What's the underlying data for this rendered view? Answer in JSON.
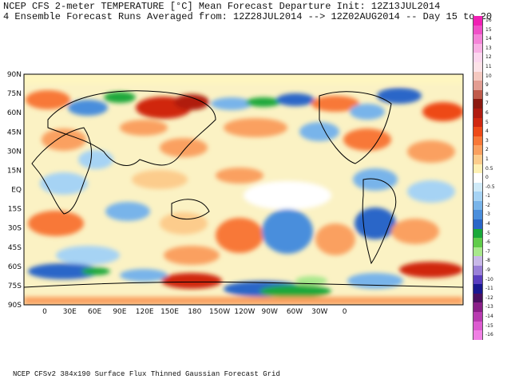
{
  "header": {
    "line1": "NCEP CFS 2-meter TEMPERATURE [°C] Mean Forecast Departure Init: 12Z13JUL2014",
    "line2": "4 Ensemble Forecast Runs Averaged from: 12Z28JUL2014 --> 12Z02AUG2014 -- Day 15 to 20"
  },
  "map": {
    "lat_labels": [
      "90N",
      "75N",
      "60N",
      "45N",
      "30N",
      "15N",
      "EQ",
      "15S",
      "30S",
      "45S",
      "60S",
      "75S",
      "90S"
    ],
    "lon_labels": [
      "0",
      "30E",
      "60E",
      "90E",
      "120E",
      "150E",
      "180",
      "150W",
      "120W",
      "90W",
      "60W",
      "30W",
      "0"
    ]
  },
  "colorbar": {
    "entries": [
      {
        "label": "16",
        "color": "#f020b4"
      },
      {
        "label": "15",
        "color": "#f050c8"
      },
      {
        "label": "14",
        "color": "#f484d8"
      },
      {
        "label": "13",
        "color": "#f8b0e4"
      },
      {
        "label": "12",
        "color": "#fcd6ee"
      },
      {
        "label": "11",
        "color": "#fde2e8"
      },
      {
        "label": "10",
        "color": "#f5c8c0"
      },
      {
        "label": "9",
        "color": "#e39d92"
      },
      {
        "label": "8",
        "color": "#c05a4a"
      },
      {
        "label": "7",
        "color": "#8c1a10"
      },
      {
        "label": "6",
        "color": "#b01c10"
      },
      {
        "label": "5",
        "color": "#d02810"
      },
      {
        "label": "4",
        "color": "#ee4a18"
      },
      {
        "label": "3",
        "color": "#f87838"
      },
      {
        "label": "2",
        "color": "#faa060"
      },
      {
        "label": "1",
        "color": "#fccc8c"
      },
      {
        "label": "0.5",
        "color": "#fef0b4"
      },
      {
        "label": "0",
        "color": "#ffffff"
      },
      {
        "label": "-0.5",
        "color": "#cfeaf8"
      },
      {
        "label": "-1",
        "color": "#a6d3f4"
      },
      {
        "label": "-2",
        "color": "#78b4ea"
      },
      {
        "label": "-3",
        "color": "#4a8edc"
      },
      {
        "label": "-4",
        "color": "#2a66c8"
      },
      {
        "label": "-5",
        "color": "#1aa83a"
      },
      {
        "label": "-6",
        "color": "#60cc4a"
      },
      {
        "label": "-7",
        "color": "#a8e88c"
      },
      {
        "label": "-8",
        "color": "#c8b8e8"
      },
      {
        "label": "-9",
        "color": "#9a80d8"
      },
      {
        "label": "-10",
        "color": "#5a3ec0"
      },
      {
        "label": "-11",
        "color": "#1a1890"
      },
      {
        "label": "-12",
        "color": "#4a1060"
      },
      {
        "label": "-13",
        "color": "#8a2088"
      },
      {
        "label": "-14",
        "color": "#b83cb0"
      },
      {
        "label": "-15",
        "color": "#dc5cd0"
      },
      {
        "label": "-16",
        "color": "#f080e4"
      }
    ]
  },
  "footer": "NCEP CFSv2 384x190 Surface Flux Thinned Gaussian Forecast Grid"
}
